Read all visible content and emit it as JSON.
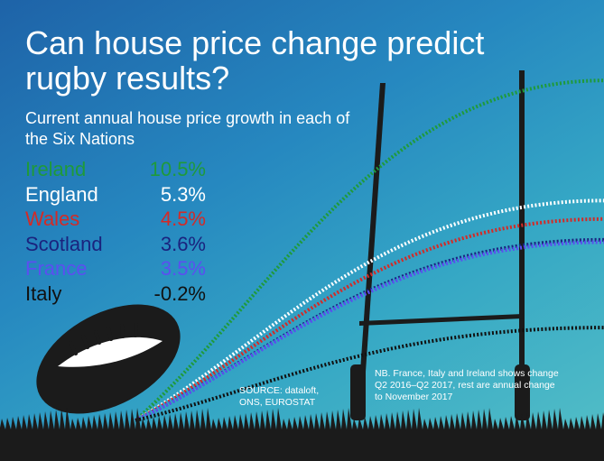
{
  "title": "Can house price change predict rugby results?",
  "subtitle": "Current annual house price growth in each of the Six Nations",
  "source": "SOURCE: dataloft, ONS, EUROSTAT",
  "note": "NB. France, Italy and Ireland shows change Q2 2016–Q2 2017, rest are annual change to November 2017",
  "colors": {
    "background_top": "#1e63a8",
    "background_bottom": "#54bfc6",
    "posts": "#1b1b1b",
    "ball": "#1b1b1b",
    "grass": "#1b1b1b"
  },
  "icons": [
    "rugby-ball-icon",
    "goal-posts-icon",
    "grass-silhouette"
  ],
  "legend": [
    {
      "name": "Ireland",
      "label": "10.5%",
      "color": "#1f9a3a"
    },
    {
      "name": "England",
      "label": "5.3%",
      "color": "#ffffff"
    },
    {
      "name": "Wales",
      "label": "4.5%",
      "color": "#d42a26"
    },
    {
      "name": "Scotland",
      "label": "3.6%",
      "color": "#1a237e"
    },
    {
      "name": "France",
      "label": "3.5%",
      "color": "#5b4ff0"
    },
    {
      "name": "Italy",
      "label": "-0.2%",
      "color": "#111111"
    }
  ],
  "chart_data": {
    "type": "line",
    "title": "Can house price change predict rugby results?",
    "subtitle": "Current annual house price growth in each of the Six Nations",
    "unit": "%",
    "series": [
      {
        "name": "Ireland",
        "value": 10.5,
        "color": "#1f9a3a"
      },
      {
        "name": "England",
        "value": 5.3,
        "color": "#ffffff"
      },
      {
        "name": "Wales",
        "value": 4.5,
        "color": "#d42a26"
      },
      {
        "name": "Scotland",
        "value": 3.6,
        "color": "#1a237e"
      },
      {
        "name": "France",
        "value": 3.5,
        "color": "#5b4ff0"
      },
      {
        "name": "Italy",
        "value": -0.2,
        "color": "#111111"
      }
    ],
    "grid": false,
    "legend_position": "left"
  }
}
